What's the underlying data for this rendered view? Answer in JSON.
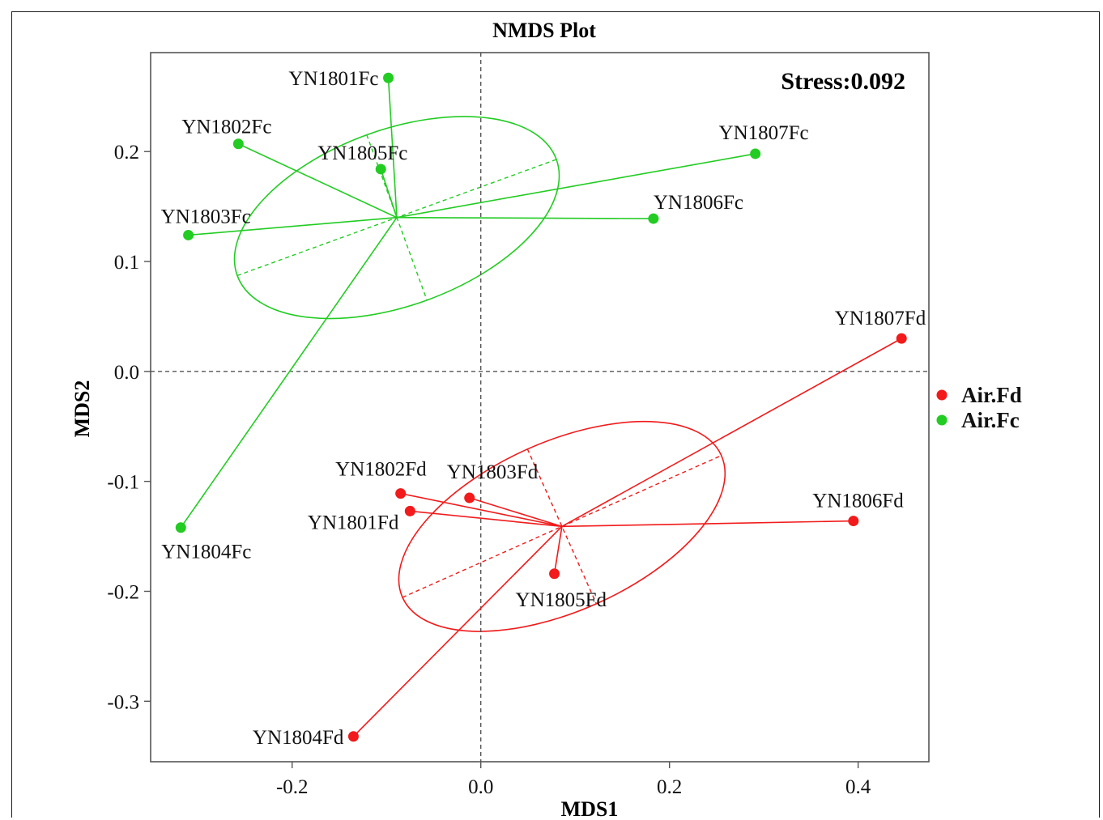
{
  "chart_data": {
    "type": "scatter",
    "title": "NMDS Plot",
    "xlabel": "MDS1",
    "ylabel": "MDS2",
    "annotation": "Stress:0.092",
    "xlim": [
      -0.35,
      0.475
    ],
    "ylim": [
      -0.355,
      0.29
    ],
    "x_ticks": [
      {
        "value": -0.2,
        "label": "-0.2"
      },
      {
        "value": 0.0,
        "label": "0.0"
      },
      {
        "value": 0.2,
        "label": "0.2"
      },
      {
        "value": 0.4,
        "label": "0.4"
      }
    ],
    "y_ticks": [
      {
        "value": 0.2,
        "label": "0.2"
      },
      {
        "value": 0.1,
        "label": "0.1"
      },
      {
        "value": 0.0,
        "label": "0.0"
      },
      {
        "value": -0.1,
        "label": "-0.1"
      },
      {
        "value": -0.2,
        "label": "-0.2"
      },
      {
        "value": -0.3,
        "label": "-0.3"
      }
    ],
    "reference_lines": {
      "x": 0,
      "y": 0,
      "style": "dashed"
    },
    "grid": false,
    "legend_position": "right",
    "series": [
      {
        "name": "Air.Fd",
        "color": "#f21a1a",
        "centroid": [
          0.086,
          -0.141
        ],
        "ellipse": {
          "center": [
            0.086,
            -0.141
          ],
          "rx": 0.185,
          "ry": 0.077,
          "angle_deg": 24
        },
        "points": [
          {
            "label": "YN1801Fd",
            "x": -0.075,
            "y": -0.127,
            "label_anchor": "end",
            "label_dx": -14,
            "label_dy": 22
          },
          {
            "label": "YN1802Fd",
            "x": -0.085,
            "y": -0.111,
            "label_anchor": "end",
            "label_dx": 32,
            "label_dy": -22
          },
          {
            "label": "YN1803Fd",
            "x": -0.012,
            "y": -0.115,
            "label_anchor": "start",
            "label_dx": -28,
            "label_dy": -24
          },
          {
            "label": "YN1804Fd",
            "x": -0.135,
            "y": -0.332,
            "label_anchor": "end",
            "label_dx": -12,
            "label_dy": 9
          },
          {
            "label": "YN1805Fd",
            "x": 0.078,
            "y": -0.184,
            "label_anchor": "start",
            "label_dx": -48,
            "label_dy": 40
          },
          {
            "label": "YN1806Fd",
            "x": 0.395,
            "y": -0.136,
            "label_anchor": "end",
            "label_dx": 62,
            "label_dy": -17
          },
          {
            "label": "YN1807Fd",
            "x": 0.446,
            "y": 0.03,
            "label_anchor": "end",
            "label_dx": 30,
            "label_dy": -17
          }
        ]
      },
      {
        "name": "Air.Fc",
        "color": "#22cc22",
        "centroid": [
          -0.089,
          0.14
        ],
        "ellipse": {
          "center": [
            -0.089,
            0.14
          ],
          "rx": 0.18,
          "ry": 0.08,
          "angle_deg": 20
        },
        "points": [
          {
            "label": "YN1801Fc",
            "x": -0.098,
            "y": 0.267,
            "label_anchor": "end",
            "label_dx": -12,
            "label_dy": 9
          },
          {
            "label": "YN1802Fc",
            "x": -0.257,
            "y": 0.207,
            "label_anchor": "start",
            "label_dx": -70,
            "label_dy": -13
          },
          {
            "label": "YN1803Fc",
            "x": -0.31,
            "y": 0.124,
            "label_anchor": "start",
            "label_dx": -34,
            "label_dy": -15
          },
          {
            "label": "YN1804Fc",
            "x": -0.318,
            "y": -0.142,
            "label_anchor": "start",
            "label_dx": -24,
            "label_dy": 38
          },
          {
            "label": "YN1805Fc",
            "x": -0.106,
            "y": 0.184,
            "label_anchor": "start",
            "label_dx": -78,
            "label_dy": -12
          },
          {
            "label": "YN1806Fc",
            "x": 0.183,
            "y": 0.139,
            "label_anchor": "start",
            "label_dx": 0,
            "label_dy": -12
          },
          {
            "label": "YN1807Fc",
            "x": 0.291,
            "y": 0.198,
            "label_anchor": "end",
            "label_dx": 66,
            "label_dy": -18
          }
        ]
      }
    ]
  }
}
